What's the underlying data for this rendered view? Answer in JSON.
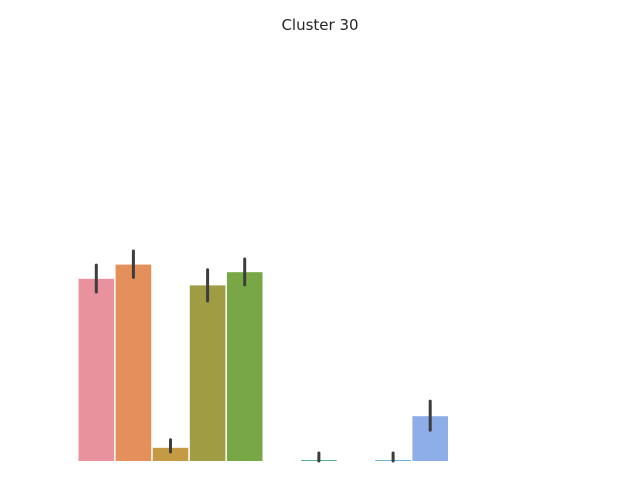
{
  "chart_data": {
    "type": "bar",
    "title": "Cluster 30",
    "xlabel": "",
    "ylabel": "",
    "grid": false,
    "axes_visible": false,
    "ylim": [
      0,
      1.0
    ],
    "bars": [
      {
        "value": 0.386,
        "err_low": 0.358,
        "err_high": 0.415,
        "color": "#e8929d"
      },
      {
        "value": 0.416,
        "err_low": 0.389,
        "err_high": 0.445,
        "color": "#e58f5a"
      },
      {
        "value": 0.028,
        "err_low": 0.019,
        "err_high": 0.045,
        "color": "#c59a44"
      },
      {
        "value": 0.372,
        "err_low": 0.339,
        "err_high": 0.405,
        "color": "#a09c44"
      },
      {
        "value": 0.4,
        "err_low": 0.373,
        "err_high": 0.428,
        "color": "#78a846"
      },
      {
        "value": null,
        "err_low": null,
        "err_high": null,
        "color": "#000000"
      },
      {
        "value": 0.002,
        "err_low": 0.0,
        "err_high": 0.017,
        "color": "#52b097"
      },
      {
        "value": null,
        "err_low": null,
        "err_high": null,
        "color": "#000000"
      },
      {
        "value": 0.002,
        "err_low": 0.0,
        "err_high": 0.017,
        "color": "#6bb3d4"
      },
      {
        "value": 0.095,
        "err_low": 0.065,
        "err_high": 0.127,
        "color": "#8daee8"
      },
      {
        "value": null,
        "err_low": null,
        "err_high": null,
        "color": "#000000"
      },
      {
        "value": null,
        "err_low": null,
        "err_high": null,
        "color": "#000000"
      },
      {
        "value": null,
        "err_low": null,
        "err_high": null,
        "color": "#000000"
      },
      {
        "value": null,
        "err_low": null,
        "err_high": null,
        "color": "#000000"
      }
    ],
    "error_bar_color": "#3d3d3d"
  }
}
